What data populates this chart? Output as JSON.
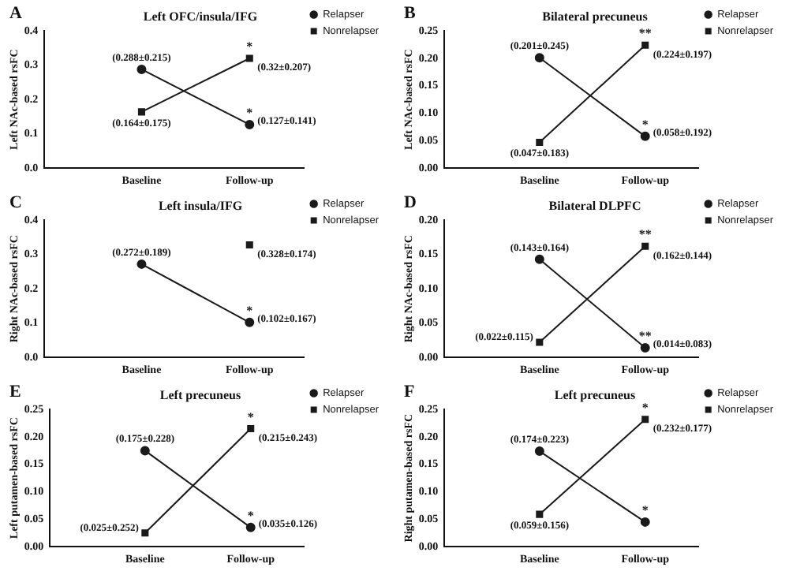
{
  "chart_data": [
    {
      "type": "line",
      "title": "Left OFC/insula/IFG",
      "ylabel": "Left NAc-based rsFC",
      "categories": [
        "Baseline",
        "Follow-up"
      ],
      "legend": "right",
      "ylim": [
        0,
        0.4
      ],
      "yticks": [
        {
          "value": 0,
          "label": "0.0"
        },
        {
          "value": 0.1,
          "label": "0.1"
        },
        {
          "value": 0.2,
          "label": "0.2"
        },
        {
          "value": 0.3,
          "label": "0.3"
        },
        {
          "value": 0.4,
          "label": "0.4"
        }
      ],
      "series": [
        {
          "name": "Relapser",
          "color": "#1a1a1a",
          "marker": "circle",
          "values": [
            0.288,
            0.127
          ],
          "value_labels": [
            "(0.288±0.215)",
            "(0.127±0.141)"
          ]
        },
        {
          "name": "Nonrelapser",
          "color": "#1a1a1a",
          "marker": "square",
          "values": [
            0.164,
            0.32
          ],
          "value_labels": [
            "(0.164±0.175)",
            "(0.32±0.207)"
          ]
        }
      ],
      "annotations": [
        "A",
        {
          "text": "*",
          "x": "Follow-up",
          "y": 0.32
        },
        {
          "text": "*",
          "x": "Follow-up",
          "y": 0.127
        }
      ]
    },
    {
      "type": "line",
      "title": "Bilateral precuneus",
      "ylabel": "Left NAc-based rsFC",
      "categories": [
        "Baseline",
        "Follow-up"
      ],
      "legend": "right",
      "ylim": [
        0,
        0.25
      ],
      "yticks": [
        {
          "value": 0,
          "label": "0.00"
        },
        {
          "value": 0.05,
          "label": "0.05"
        },
        {
          "value": 0.1,
          "label": "0.10"
        },
        {
          "value": 0.15,
          "label": "0.15"
        },
        {
          "value": 0.2,
          "label": "0.20"
        },
        {
          "value": 0.25,
          "label": "0.25"
        }
      ],
      "series": [
        {
          "name": "Relapser",
          "color": "#1a1a1a",
          "marker": "circle",
          "values": [
            0.201,
            0.058
          ],
          "value_labels": [
            "(0.201±0.245)",
            "(0.058±0.192)"
          ]
        },
        {
          "name": "Nonrelapser",
          "color": "#1a1a1a",
          "marker": "square",
          "values": [
            0.047,
            0.224
          ],
          "value_labels": [
            "(0.047±0.183)",
            "(0.224±0.197)"
          ]
        }
      ],
      "annotations": [
        "B",
        {
          "text": "**",
          "x": "Follow-up",
          "y": 0.224
        },
        {
          "text": "*",
          "x": "Follow-up",
          "y": 0.058
        }
      ]
    },
    {
      "type": "line",
      "title": "Left insula/IFG",
      "ylabel": "Right NAc-based rsFC",
      "categories": [
        "Baseline",
        "Follow-up"
      ],
      "legend": "right",
      "ylim": [
        0,
        0.4
      ],
      "yticks": [
        {
          "value": 0,
          "label": "0.0"
        },
        {
          "value": 0.1,
          "label": "0.1"
        },
        {
          "value": 0.2,
          "label": "0.2"
        },
        {
          "value": 0.3,
          "label": "0.3"
        },
        {
          "value": 0.4,
          "label": "0.4"
        }
      ],
      "series": [
        {
          "name": "Relapser",
          "color": "#1a1a1a",
          "marker": "circle",
          "values": [
            0.272,
            0.102
          ],
          "value_labels": [
            "(0.272±0.189)",
            "(0.102±0.167)"
          ]
        },
        {
          "name": "Nonrelapser",
          "color": "#1a1a1a",
          "marker": "square",
          "values": [
            null,
            0.328
          ],
          "value_labels": [
            null,
            "(0.328±0.174)"
          ]
        }
      ],
      "annotations": [
        "C",
        {
          "text": "*",
          "x": "Follow-up",
          "y": 0.102
        }
      ]
    },
    {
      "type": "line",
      "title": "Bilateral DLPFC",
      "ylabel": "Right NAc-based rsFC",
      "categories": [
        "Baseline",
        "Follow-up"
      ],
      "legend": "right",
      "ylim": [
        0,
        0.2
      ],
      "yticks": [
        {
          "value": 0,
          "label": "0.00"
        },
        {
          "value": 0.05,
          "label": "0.05"
        },
        {
          "value": 0.1,
          "label": "0.10"
        },
        {
          "value": 0.15,
          "label": "0.15"
        },
        {
          "value": 0.2,
          "label": "0.20"
        }
      ],
      "series": [
        {
          "name": "Relapser",
          "color": "#1a1a1a",
          "marker": "circle",
          "values": [
            0.143,
            0.014
          ],
          "value_labels": [
            "(0.143±0.164)",
            "(0.014±0.083)"
          ]
        },
        {
          "name": "Nonrelapser",
          "color": "#1a1a1a",
          "marker": "square",
          "values": [
            0.022,
            0.162
          ],
          "value_labels": [
            "(0.022±0.115)",
            "(0.162±0.144)"
          ]
        }
      ],
      "annotations": [
        "D",
        {
          "text": "**",
          "x": "Follow-up",
          "y": 0.162
        },
        {
          "text": "**",
          "x": "Follow-up",
          "y": 0.014
        }
      ]
    },
    {
      "type": "line",
      "title": "Left precuneus",
      "ylabel": "Left putamen-based rsFC",
      "categories": [
        "Baseline",
        "Follow-up"
      ],
      "legend": "right",
      "ylim": [
        0,
        0.25
      ],
      "yticks": [
        {
          "value": 0,
          "label": "0.00"
        },
        {
          "value": 0.05,
          "label": "0.05"
        },
        {
          "value": 0.1,
          "label": "0.10"
        },
        {
          "value": 0.15,
          "label": "0.15"
        },
        {
          "value": 0.2,
          "label": "0.20"
        },
        {
          "value": 0.25,
          "label": "0.25"
        }
      ],
      "series": [
        {
          "name": "Relapser",
          "color": "#1a1a1a",
          "marker": "circle",
          "values": [
            0.175,
            0.035
          ],
          "value_labels": [
            "(0.175±0.228)",
            "(0.035±0.126)"
          ]
        },
        {
          "name": "Nonrelapser",
          "color": "#1a1a1a",
          "marker": "square",
          "values": [
            0.025,
            0.215
          ],
          "value_labels": [
            "(0.025±0.252)",
            "(0.215±0.243)"
          ]
        }
      ],
      "annotations": [
        "E",
        {
          "text": "*",
          "x": "Follow-up",
          "y": 0.215
        },
        {
          "text": "*",
          "x": "Follow-up",
          "y": 0.035
        }
      ]
    },
    {
      "type": "line",
      "title": "Left precuneus",
      "ylabel": "Right putamen-based rsFC",
      "categories": [
        "Baseline",
        "Follow-up"
      ],
      "legend": "right",
      "ylim": [
        0,
        0.25
      ],
      "yticks": [
        {
          "value": 0,
          "label": "0.00"
        },
        {
          "value": 0.05,
          "label": "0.05"
        },
        {
          "value": 0.1,
          "label": "0.10"
        },
        {
          "value": 0.15,
          "label": "0.15"
        },
        {
          "value": 0.2,
          "label": "0.20"
        },
        {
          "value": 0.25,
          "label": "0.25"
        }
      ],
      "series": [
        {
          "name": "Relapser",
          "color": "#1a1a1a",
          "marker": "circle",
          "values": [
            0.174,
            0.045
          ],
          "value_labels": [
            "(0.174±0.223)",
            null
          ]
        },
        {
          "name": "Nonrelapser",
          "color": "#1a1a1a",
          "marker": "square",
          "values": [
            0.059,
            0.232
          ],
          "value_labels": [
            "(0.059±0.156)",
            "(0.232±0.177)"
          ]
        }
      ],
      "annotations": [
        "F",
        {
          "text": "*",
          "x": "Follow-up",
          "y": 0.232
        },
        {
          "text": "*",
          "x": "Follow-up",
          "y": 0.045
        }
      ]
    }
  ]
}
